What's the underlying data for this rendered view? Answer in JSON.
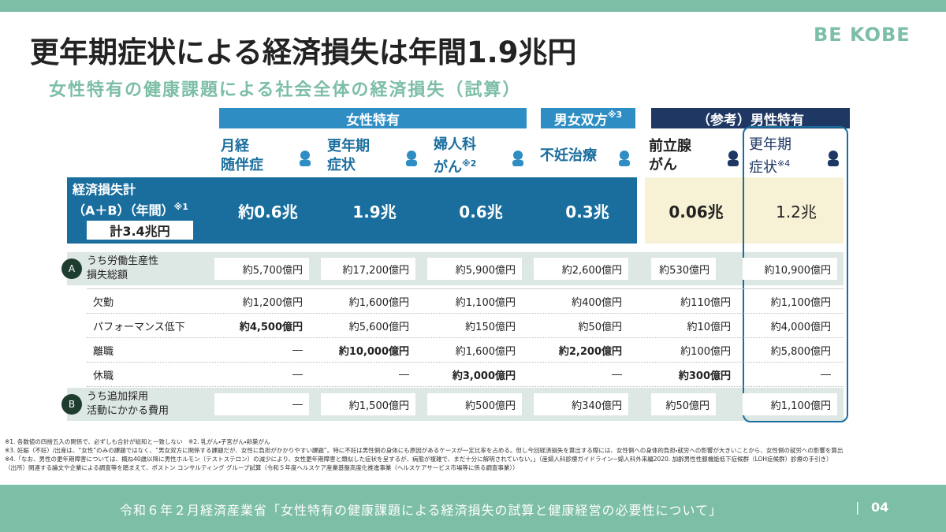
{
  "brand": "BE KOBE",
  "title": "更年期症状による経済損失は年間1.9兆円",
  "subtitle": "女性特有の健康課題による社会全体の経済損失（試算）",
  "groups": [
    {
      "label": "女性特有"
    },
    {
      "label": "男女双方",
      "note": "※3"
    },
    {
      "label": "（参考）男性特有"
    }
  ],
  "columns": [
    {
      "lines": [
        "月経",
        "随伴症"
      ]
    },
    {
      "lines": [
        "更年期",
        "症状"
      ]
    },
    {
      "lines": [
        "婦人科",
        "がん"
      ],
      "note": "※2"
    },
    {
      "lines": [
        "不妊治療"
      ]
    },
    {
      "lines": [
        "前立腺",
        "がん"
      ]
    },
    {
      "lines": [
        "更年期",
        "症状"
      ],
      "note": "※4"
    }
  ],
  "total": {
    "lines": [
      "経済損失計",
      "（A＋B）（年間）"
    ],
    "note": "※1",
    "sum": "計3.4兆円",
    "values": [
      "約0.6兆",
      "1.9兆",
      "0.6兆",
      "0.3兆",
      "0.06兆",
      "1.2兆"
    ]
  },
  "section_a": {
    "badge": "A",
    "lines": [
      "うち労働生産性",
      "損失総額"
    ],
    "values": [
      "約5,700億円",
      "約17,200億円",
      "約5,900億円",
      "約2,600億円",
      "約530億円",
      "約10,900億円"
    ],
    "rows": [
      {
        "label": "欠勤",
        "values": [
          "約1,200億円",
          "約1,600億円",
          "約1,100億円",
          "約400億円",
          "約110億円",
          "約1,100億円"
        ],
        "bold": []
      },
      {
        "label": "パフォーマンス低下",
        "values": [
          "約4,500億円",
          "約5,600億円",
          "約150億円",
          "約50億円",
          "約10億円",
          "約4,000億円"
        ],
        "bold": [
          0
        ]
      },
      {
        "label": "離職",
        "values": [
          "―",
          "約10,000億円",
          "約1,600億円",
          "約2,200億円",
          "約100億円",
          "約5,800億円"
        ],
        "bold": [
          1,
          3
        ]
      },
      {
        "label": "休職",
        "values": [
          "―",
          "―",
          "約3,000億円",
          "―",
          "約300億円",
          "―"
        ],
        "bold": [
          2,
          4
        ]
      }
    ]
  },
  "section_b": {
    "badge": "B",
    "lines": [
      "うち追加採用",
      "活動にかかる費用"
    ],
    "values": [
      "―",
      "約1,500億円",
      "約500億円",
      "約340億円",
      "約50億円",
      "約1,100億円"
    ]
  },
  "footnotes": [
    "※1. 各数値の四捨五入の関係で、必ずしも合計が総和と一致しない　※2. 乳がん・子宮がん・卵巣がん",
    "※3. 妊娠（不妊）/出産は、“女性”のみの課題ではなく、“男女双方に関係する課題だが、女性に負担がかかりやすい課題”。特に不妊は男性側の身体にも原因があるケースが一定比率を占める。但し今回経済損失を算出する際には、女性側への身体的負担・就労への影響が大きいことから、女性側の就労への影響を算出",
    "※4.「なお、男性の更年期障害については、概ね40歳以降に男性ホルモン（テストステロン）の減少により、女性更年期障害と類似した症状を呈するが、病態が複雑で、まだ十分に解明されていない。」（産婦人科診療ガイドライン−婦人科外来編2020. 加齢男性性腺機能低下症候群（LOH症候群）診療の手引き）",
    "（出所）関連する論文や企業による調査等を踏まえて、ボストン コンサルティング グループ試算（令和５年度ヘルスケア産業基盤高度化推進事業（ヘルスケアサービス市場等に係る調査事業））"
  ],
  "footer": {
    "source": "令和６年２月経済産業省「女性特有の健康課題による経済損失の試算と健康経営の必要性について」",
    "page": "04"
  }
}
